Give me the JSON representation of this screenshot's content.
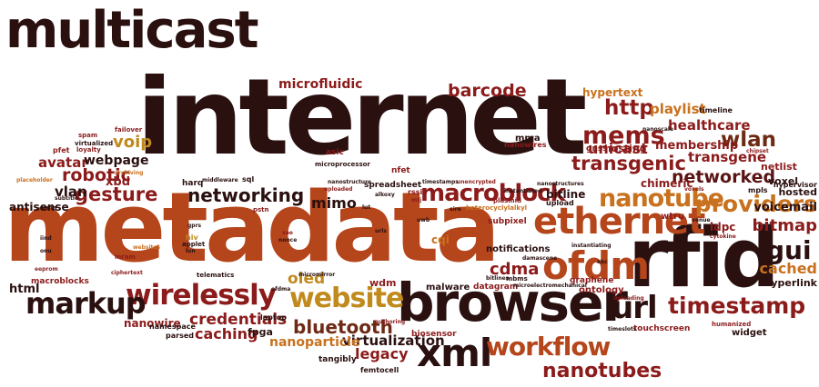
{
  "palette": {
    "dark": "#2b1010",
    "maroon": "#5a1414",
    "brown": "#6e2a14",
    "rust": "#b5451b",
    "red": "#8c1b1b",
    "orange": "#c8711e",
    "gold": "#c08a1c",
    "gray": "#555555"
  },
  "words": [
    {
      "text": "multicast",
      "c": "dark"
    },
    {
      "text": "internet",
      "c": "dark"
    },
    {
      "text": "metadata",
      "c": "rust"
    },
    {
      "text": "rfid",
      "c": "dark"
    },
    {
      "text": "browser",
      "c": "dark"
    },
    {
      "text": "ethernet",
      "c": "rust"
    },
    {
      "text": "ofdm",
      "c": "rust"
    },
    {
      "text": "xml",
      "c": "dark"
    },
    {
      "text": "website",
      "c": "gold"
    },
    {
      "text": "wirelessly",
      "c": "red"
    },
    {
      "text": "markup",
      "c": "dark"
    },
    {
      "text": "workflow",
      "c": "rust"
    },
    {
      "text": "timestamp",
      "c": "red"
    },
    {
      "text": "macroblock",
      "c": "red"
    },
    {
      "text": "nanotube",
      "c": "orange"
    },
    {
      "text": "url",
      "c": "dark"
    },
    {
      "text": "mems",
      "c": "red"
    },
    {
      "text": "gui",
      "c": "dark"
    },
    {
      "text": "providers",
      "c": "orange"
    },
    {
      "text": "nanotubes",
      "c": "red"
    },
    {
      "text": "bluetooth",
      "c": "brown"
    },
    {
      "text": "transgenic",
      "c": "red"
    },
    {
      "text": "networked",
      "c": "maroon"
    },
    {
      "text": "gesture",
      "c": "red"
    },
    {
      "text": "robotic",
      "c": "red"
    },
    {
      "text": "networking",
      "c": "dark"
    },
    {
      "text": "credentials",
      "c": "red"
    },
    {
      "text": "wlan",
      "c": "brown"
    },
    {
      "text": "http",
      "c": "red"
    },
    {
      "text": "barcode",
      "c": "red"
    },
    {
      "text": "voip",
      "c": "gold"
    },
    {
      "text": "bitmap",
      "c": "red"
    },
    {
      "text": "cached",
      "c": "orange"
    },
    {
      "text": "cdma",
      "c": "red"
    },
    {
      "text": "unicast",
      "c": "red"
    },
    {
      "text": "legacy",
      "c": "red"
    },
    {
      "text": "mimo",
      "c": "dark"
    },
    {
      "text": "virtualization",
      "c": "dark"
    },
    {
      "text": "healthcare",
      "c": "red"
    },
    {
      "text": "transgene",
      "c": "red"
    },
    {
      "text": "caching",
      "c": "red"
    },
    {
      "text": "nanoparticle",
      "c": "orange"
    },
    {
      "text": "microfluidic",
      "c": "red"
    },
    {
      "text": "playlist",
      "c": "orange"
    },
    {
      "text": "oled",
      "c": "gold"
    },
    {
      "text": "vlan",
      "c": "dark"
    },
    {
      "text": "avatar",
      "c": "red"
    },
    {
      "text": "webpage",
      "c": "dark"
    },
    {
      "text": "voicemail",
      "c": "dark"
    },
    {
      "text": "membership",
      "c": "red"
    },
    {
      "text": "hyperlink",
      "c": "dark"
    },
    {
      "text": "xbd",
      "c": "red"
    },
    {
      "text": "html",
      "c": "dark"
    },
    {
      "text": "nanowire",
      "c": "red"
    },
    {
      "text": "voxel",
      "c": "dark"
    },
    {
      "text": "hypertext",
      "c": "orange"
    },
    {
      "text": "hosted",
      "c": "dark"
    },
    {
      "text": "ldpc",
      "c": "red"
    },
    {
      "text": "bitline",
      "c": "dark"
    },
    {
      "text": "chimeric",
      "c": "red"
    },
    {
      "text": "hosting",
      "c": "red"
    },
    {
      "text": "antisense",
      "c": "dark"
    },
    {
      "text": "notifications",
      "c": "dark"
    },
    {
      "text": "malware",
      "c": "dark"
    },
    {
      "text": "datagram",
      "c": "red"
    },
    {
      "text": "ontology",
      "c": "red"
    },
    {
      "text": "wdm",
      "c": "red"
    },
    {
      "text": "fpga",
      "c": "dark"
    },
    {
      "text": "cqi",
      "c": "orange"
    },
    {
      "text": "subpixel",
      "c": "red"
    },
    {
      "text": "mma",
      "c": "dark"
    },
    {
      "text": "wtru",
      "c": "red"
    },
    {
      "text": "spreadsheet",
      "c": "dark"
    },
    {
      "text": "widget",
      "c": "dark"
    },
    {
      "text": "netlist",
      "c": "red"
    },
    {
      "text": "harq",
      "c": "dark"
    },
    {
      "text": "upload",
      "c": "dark"
    },
    {
      "text": "graphene",
      "c": "red"
    },
    {
      "text": "gnss",
      "c": "red"
    },
    {
      "text": "timeline",
      "c": "dark"
    },
    {
      "text": "hypervisor",
      "c": "dark"
    },
    {
      "text": "mpls",
      "c": "dark"
    },
    {
      "text": "macroblocks",
      "c": "red"
    },
    {
      "text": "biosensor",
      "c": "red"
    },
    {
      "text": "femtocell",
      "c": "dark"
    },
    {
      "text": "tangibly",
      "c": "dark"
    },
    {
      "text": "touchscreen",
      "c": "red"
    },
    {
      "text": "laptop",
      "c": "dark"
    },
    {
      "text": "pstn",
      "c": "red"
    },
    {
      "text": "namespace",
      "c": "dark"
    },
    {
      "text": "parsed",
      "c": "dark"
    },
    {
      "text": "nanowires",
      "c": "red"
    },
    {
      "text": "microprocessor",
      "c": "dark"
    },
    {
      "text": "asic",
      "c": "red"
    },
    {
      "text": "nfet",
      "c": "red"
    },
    {
      "text": "rssi",
      "c": "red"
    },
    {
      "text": "sql",
      "c": "dark"
    },
    {
      "text": "virtualized",
      "c": "dark"
    },
    {
      "text": "pfet",
      "c": "red"
    },
    {
      "text": "loyalty",
      "c": "red"
    },
    {
      "text": "spam",
      "c": "red"
    },
    {
      "text": "failover",
      "c": "red"
    },
    {
      "text": "hiv",
      "c": "gold"
    },
    {
      "text": "gprs",
      "c": "dark"
    },
    {
      "text": "applet",
      "c": "dark"
    },
    {
      "text": "lut",
      "c": "dark"
    },
    {
      "text": "urls",
      "c": "dark"
    },
    {
      "text": "heterocyclylalkyl",
      "c": "orange"
    },
    {
      "text": "plasmid",
      "c": "red"
    },
    {
      "text": "uwb",
      "c": "dark"
    },
    {
      "text": "nanostructure",
      "c": "dark"
    },
    {
      "text": "nanostructures",
      "c": "dark"
    },
    {
      "text": "unencrypted",
      "c": "red"
    },
    {
      "text": "timestamps",
      "c": "dark"
    },
    {
      "text": "instantiated",
      "c": "dark"
    },
    {
      "text": "instantiating",
      "c": "dark"
    },
    {
      "text": "damascene",
      "c": "dark"
    },
    {
      "text": "microelectromechanical",
      "c": "dark"
    },
    {
      "text": "telematics",
      "c": "dark"
    },
    {
      "text": "middleware",
      "c": "dark"
    },
    {
      "text": "mbms",
      "c": "dark"
    },
    {
      "text": "bitlines",
      "c": "dark"
    },
    {
      "text": "ciphertext",
      "c": "red"
    },
    {
      "text": "mram",
      "c": "red"
    },
    {
      "text": "websites",
      "c": "orange"
    },
    {
      "text": "lun",
      "c": "dark"
    },
    {
      "text": "venue",
      "c": "dark"
    },
    {
      "text": "cytokine",
      "c": "red"
    },
    {
      "text": "nanoscale",
      "c": "dark"
    },
    {
      "text": "uploading",
      "c": "red"
    },
    {
      "text": "timeslots",
      "c": "dark"
    },
    {
      "text": "humanized",
      "c": "red"
    },
    {
      "text": "xbc",
      "c": "dark"
    },
    {
      "text": "authoring",
      "c": "red"
    },
    {
      "text": "ofdma",
      "c": "dark"
    },
    {
      "text": "micromirror",
      "c": "dark"
    },
    {
      "text": "sima",
      "c": "dark"
    },
    {
      "text": "subtitle",
      "c": "dark"
    },
    {
      "text": "placeholder",
      "c": "orange"
    },
    {
      "text": "archiving",
      "c": "orange"
    },
    {
      "text": "uploaded",
      "c": "red"
    },
    {
      "text": "alkoxy",
      "c": "dark"
    },
    {
      "text": "mtj",
      "c": "red"
    },
    {
      "text": "sire",
      "c": "dark"
    },
    {
      "text": "nonce",
      "c": "dark"
    },
    {
      "text": "xae",
      "c": "red"
    },
    {
      "text": "chipset",
      "c": "red"
    },
    {
      "text": "voxels",
      "c": "red"
    },
    {
      "text": "iind",
      "c": "dark"
    },
    {
      "text": "onu",
      "c": "dark"
    },
    {
      "text": "eeprom",
      "c": "red"
    }
  ]
}
